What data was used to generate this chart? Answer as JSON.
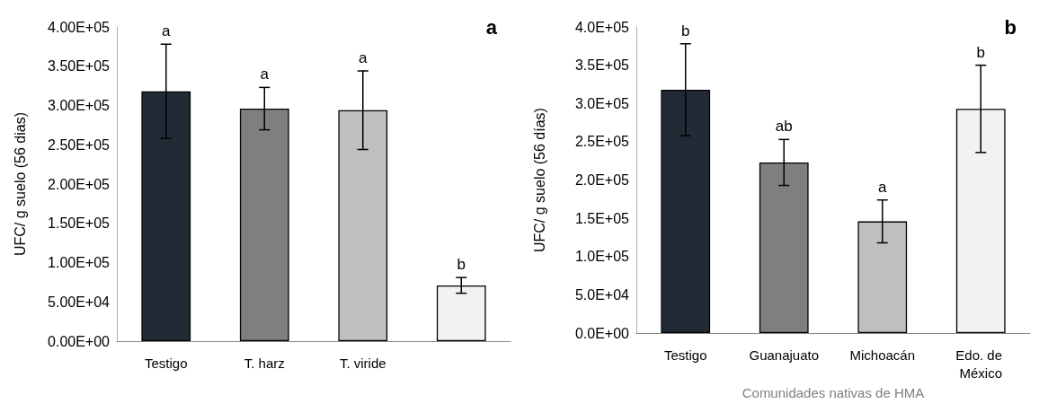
{
  "chart_data": [
    {
      "type": "bar",
      "title": "a",
      "ylabel": "UFC/ g suelo (56 dias)",
      "categories": [
        "Testigo",
        "T. harz",
        "T. viride",
        null
      ],
      "series": [
        {
          "colors": [
            "#222a35",
            "#7f7f7f",
            "#bfbfbf",
            "#f2f2f2"
          ],
          "values": [
            318000,
            296000,
            294000,
            71000
          ],
          "errors": [
            60000,
            27000,
            50000,
            10000
          ]
        }
      ],
      "annotations": [
        "a",
        "a",
        "a",
        "b"
      ],
      "ylim": [
        0,
        400000
      ],
      "yticks": [
        {
          "value": 0,
          "label": "0.00E+00"
        },
        {
          "value": 50000,
          "label": "5.00E+04"
        },
        {
          "value": 100000,
          "label": "1.00E+05"
        },
        {
          "value": 150000,
          "label": "1.50E+05"
        },
        {
          "value": 200000,
          "label": "2.00E+05"
        },
        {
          "value": 250000,
          "label": "2.50E+05"
        },
        {
          "value": 300000,
          "label": "3.00E+05"
        },
        {
          "value": 350000,
          "label": "3.50E+05"
        },
        {
          "value": 400000,
          "label": "4.00E+05"
        }
      ]
    },
    {
      "type": "bar",
      "title": "b",
      "ylabel": "UFC/ g suelo (56 días)",
      "xlabel": "Comunidades nativas de HMA",
      "categories": [
        "Testigo",
        "Guanajuato",
        "Michoacán",
        "Edo. de México"
      ],
      "series": [
        {
          "colors": [
            "#222a35",
            "#7f7f7f",
            "#bfbfbf",
            "#f2f2f2"
          ],
          "values": [
            318000,
            223000,
            146000,
            293000
          ],
          "errors": [
            60000,
            30000,
            28000,
            57000
          ]
        }
      ],
      "annotations": [
        "b",
        "ab",
        "a",
        "b"
      ],
      "ylim": [
        0,
        400000
      ],
      "yticks": [
        {
          "value": 0,
          "label": "0.0E+00"
        },
        {
          "value": 50000,
          "label": "5.0E+04"
        },
        {
          "value": 100000,
          "label": "1.0E+05"
        },
        {
          "value": 150000,
          "label": "1.5E+05"
        },
        {
          "value": 200000,
          "label": "2.0E+05"
        },
        {
          "value": 250000,
          "label": "2.5E+05"
        },
        {
          "value": 300000,
          "label": "3.0E+05"
        },
        {
          "value": 350000,
          "label": "3.5E+05"
        },
        {
          "value": 400000,
          "label": "4.0E+05"
        }
      ]
    }
  ]
}
